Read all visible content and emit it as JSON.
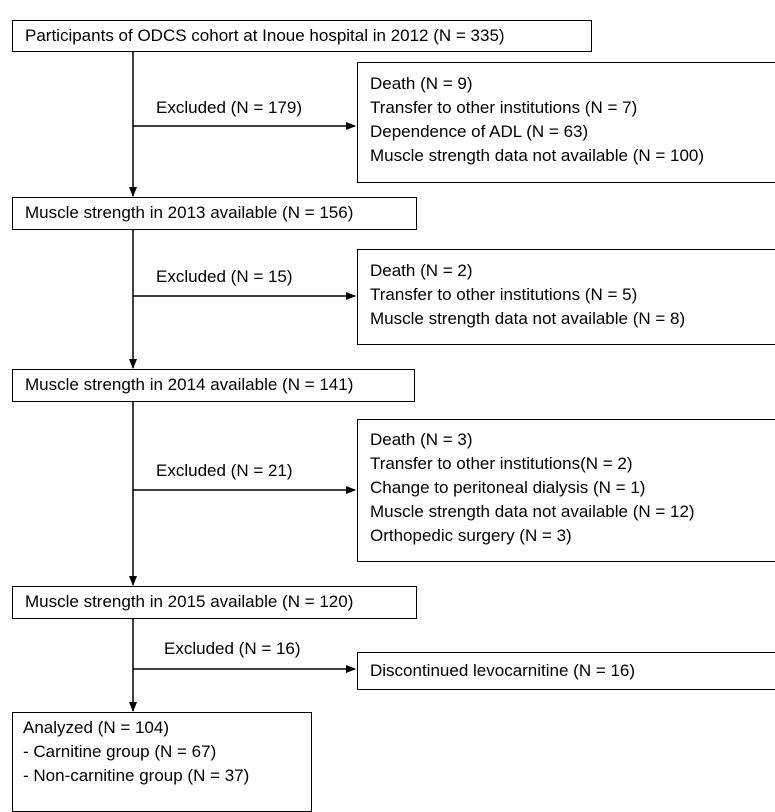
{
  "stages": [
    {
      "label": "Participants of ODCS cohort at Inoue hospital in 2012 (N = 335)"
    },
    {
      "label": "Muscle strength in 2013 available (N = 156)"
    },
    {
      "label": "Muscle strength in 2014 available (N = 141)"
    },
    {
      "label": "Muscle strength in 2015 available (N = 120)"
    }
  ],
  "exclusions": [
    {
      "label": "Excluded (N = 179)",
      "reasons": [
        "Death (N = 9)",
        "Transfer to other institutions (N = 7)",
        "Dependence of ADL (N = 63)",
        "Muscle strength data not available (N = 100)"
      ]
    },
    {
      "label": "Excluded (N = 15)",
      "reasons": [
        "Death (N = 2)",
        "Transfer to other institutions (N = 5)",
        "Muscle strength data not available (N = 8)"
      ]
    },
    {
      "label": "Excluded (N = 21)",
      "reasons": [
        "Death (N = 3)",
        "Transfer to other institutions(N = 2)",
        "Change to peritoneal dialysis (N = 1)",
        "Muscle strength data not available (N = 12)",
        "Orthopedic surgery (N = 3)"
      ]
    },
    {
      "label": "Excluded (N = 16)",
      "reasons": [
        "Discontinued levocarnitine (N = 16)"
      ]
    }
  ],
  "analyzed": {
    "title": "Analyzed (N = 104)",
    "groups": [
      "- Carnitine group (N = 67)",
      "- Non-carnitine group (N = 37)"
    ]
  }
}
